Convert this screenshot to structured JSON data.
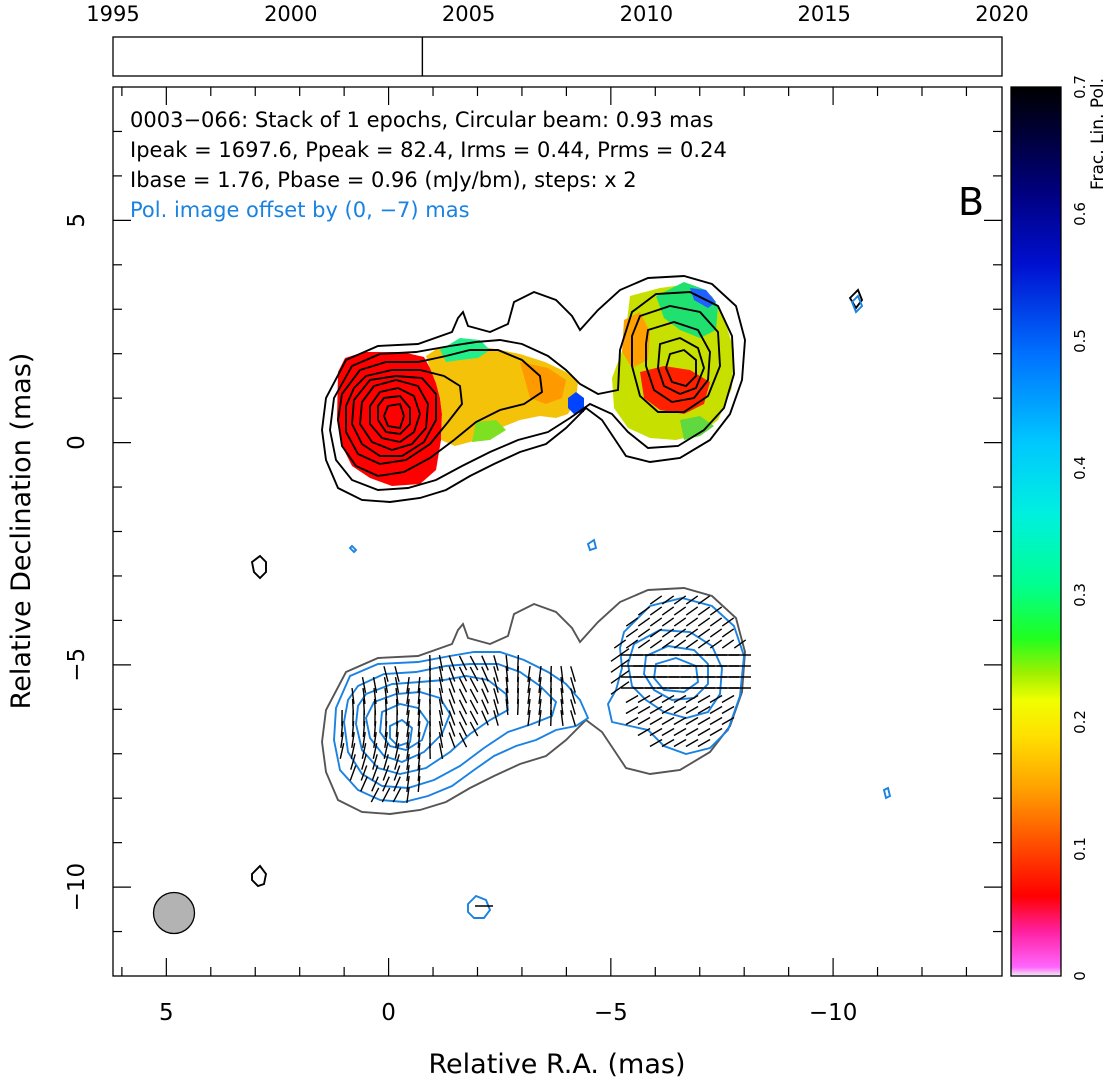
{
  "chart_data": {
    "type": "contour",
    "source_name": "0003-066",
    "panel_letter": "B",
    "annotations": [
      "0003−066: Stack of 1 epochs, Circular beam: 0.93 mas",
      "Ipeak = 1697.6, Ppeak = 82.4, Irms = 0.44, Prms = 0.24",
      "Ibase = 1.76, Pbase = 0.96 (mJy/bm), steps: x 2"
    ],
    "offset_note": "Pol. image offset by (0, −7) mas",
    "xlabel": "Relative R.A. (mas)",
    "ylabel": "Relative Declination (mas)",
    "xlim": [
      6.2,
      -13.8
    ],
    "ylim": [
      -12.0,
      8.0
    ],
    "xticks": [
      "5",
      "0",
      "−5",
      "−10"
    ],
    "xtick_values": [
      5,
      0,
      -5,
      -10
    ],
    "yticks": [
      "5",
      "0",
      "−5",
      "−10"
    ],
    "ytick_values": [
      5,
      0,
      -5,
      -10
    ],
    "epoch_axis": {
      "ticks": [
        "1995",
        "2000",
        "2005",
        "2010",
        "2015",
        "2020"
      ],
      "tick_values": [
        1995,
        2000,
        2005,
        2010,
        2015,
        2020
      ],
      "range": [
        1995,
        2020
      ],
      "epochs": [
        2003.7
      ]
    },
    "colorbar": {
      "label": "Frac. Lin. Pol.",
      "ticks": [
        "0",
        "0.1",
        "0.2",
        "0.3",
        "0.4",
        "0.5",
        "0.6",
        "0.7"
      ],
      "tick_values": [
        0,
        0.1,
        0.2,
        0.3,
        0.4,
        0.5,
        0.6,
        0.7
      ],
      "range": [
        0,
        0.7
      ]
    },
    "beam": {
      "major_mas": 0.93,
      "ra_center": 5.0,
      "dec_center": -10.6
    },
    "stokes_i_peak_mjy": 1697.6,
    "pol_peak_mjy": 82.4,
    "stokes_i_rms_mjy": 0.44,
    "pol_rms_mjy": 0.24,
    "stokes_i_base_mjy": 1.76,
    "pol_base_mjy": 0.96,
    "contour_step_factor": 2,
    "pol_offset_mas": [
      0,
      -7
    ],
    "colors": {
      "total_intensity_contours": "#000000",
      "offset_total_intensity_contour": "#555555",
      "polarized_contours": "#1a82e0",
      "evpa_ticks": "#000000",
      "beam_fill": "#b3b3b3"
    }
  }
}
